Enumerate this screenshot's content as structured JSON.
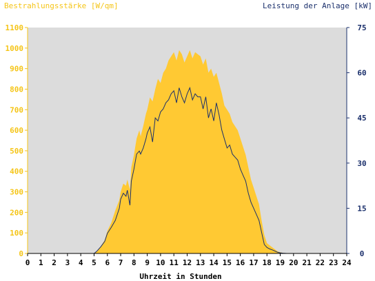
{
  "chart_data": {
    "type": "area",
    "title_left": "Bestrahlungsstärke [W/qm]",
    "title_right": "Leistung der Anlage [kW]",
    "xlabel": "Uhrzeit in Stunden",
    "x_ticks": [
      "0",
      "1",
      "2",
      "3",
      "4",
      "5",
      "6",
      "7",
      "8",
      "9",
      "10",
      "11",
      "12",
      "13",
      "14",
      "15",
      "16",
      "17",
      "18",
      "19",
      "20",
      "21",
      "22",
      "23",
      "24"
    ],
    "y_left_ticks": [
      "0",
      "100",
      "200",
      "300",
      "400",
      "500",
      "600",
      "700",
      "800",
      "900",
      "1000",
      "1100"
    ],
    "y_right_ticks": [
      "0",
      "15",
      "30",
      "45",
      "60",
      "75"
    ],
    "xlim": [
      0,
      24
    ],
    "ylim_left": [
      0,
      1100
    ],
    "ylim_right": [
      0,
      75
    ],
    "colors": {
      "plot_background": "#dcdcdc",
      "irradiance_fill": "#ffc933",
      "power_line": "#1a2f6b",
      "left_axis": "#f5c518",
      "right_axis": "#1a2f6b"
    },
    "series": [
      {
        "name": "Bestrahlungsstärke [W/qm]",
        "axis": "left",
        "style": "area",
        "x": [
          0,
          5.0,
          5.2,
          5.5,
          5.8,
          6.0,
          6.3,
          6.6,
          6.9,
          7.0,
          7.2,
          7.4,
          7.5,
          7.7,
          7.8,
          8.0,
          8.2,
          8.4,
          8.5,
          8.7,
          8.9,
          9.0,
          9.2,
          9.4,
          9.6,
          9.8,
          10.0,
          10.2,
          10.4,
          10.6,
          10.8,
          11.0,
          11.2,
          11.4,
          11.6,
          11.8,
          12.0,
          12.2,
          12.4,
          12.6,
          12.8,
          13.0,
          13.2,
          13.4,
          13.6,
          13.8,
          14.0,
          14.2,
          14.4,
          14.6,
          14.8,
          15.0,
          15.2,
          15.4,
          15.6,
          15.8,
          16.0,
          16.2,
          16.4,
          16.6,
          16.8,
          17.0,
          17.2,
          17.4,
          17.6,
          17.8,
          18.0,
          18.2,
          18.4,
          18.6,
          18.8,
          19.0,
          19.2,
          19.5,
          20.0,
          24
        ],
        "y": [
          0,
          0,
          10,
          35,
          65,
          110,
          150,
          210,
          260,
          300,
          340,
          330,
          360,
          310,
          420,
          480,
          560,
          600,
          570,
          620,
          680,
          700,
          760,
          740,
          800,
          850,
          830,
          880,
          900,
          940,
          960,
          980,
          940,
          990,
          970,
          930,
          960,
          990,
          950,
          980,
          970,
          960,
          920,
          950,
          880,
          900,
          860,
          880,
          830,
          780,
          720,
          700,
          680,
          640,
          620,
          600,
          560,
          520,
          480,
          420,
          360,
          320,
          280,
          240,
          160,
          90,
          50,
          40,
          30,
          20,
          10,
          6,
          3,
          0,
          0,
          0
        ]
      },
      {
        "name": "Leistung der Anlage [kW]",
        "axis": "right",
        "style": "line",
        "x": [
          0,
          5.0,
          5.2,
          5.5,
          5.8,
          6.0,
          6.3,
          6.6,
          6.9,
          7.0,
          7.2,
          7.4,
          7.5,
          7.7,
          7.8,
          8.0,
          8.2,
          8.4,
          8.5,
          8.7,
          8.9,
          9.0,
          9.2,
          9.4,
          9.6,
          9.8,
          10.0,
          10.2,
          10.4,
          10.6,
          10.8,
          11.0,
          11.2,
          11.4,
          11.6,
          11.8,
          12.0,
          12.2,
          12.4,
          12.6,
          12.8,
          13.0,
          13.2,
          13.4,
          13.6,
          13.8,
          14.0,
          14.2,
          14.4,
          14.6,
          14.8,
          15.0,
          15.2,
          15.4,
          15.6,
          15.8,
          16.0,
          16.2,
          16.4,
          16.6,
          16.8,
          17.0,
          17.2,
          17.4,
          17.6,
          17.8,
          18.0,
          18.2,
          18.4,
          18.6,
          18.8,
          19.0,
          19.2,
          19.5,
          20.0,
          24
        ],
        "y": [
          0,
          0,
          0.7,
          2.2,
          4.0,
          6.7,
          8.7,
          11.0,
          15.0,
          18.0,
          20.0,
          19.0,
          21.0,
          16.0,
          24.0,
          28.0,
          33.0,
          34.0,
          33.0,
          35.0,
          38.0,
          40.0,
          42.0,
          37.0,
          45.0,
          44.0,
          47.0,
          48.0,
          50.0,
          51.0,
          53.0,
          54.0,
          50.0,
          55.0,
          52.0,
          50.0,
          53.0,
          55.0,
          51.0,
          53.0,
          52.0,
          52.0,
          48.0,
          52.0,
          45.0,
          48.0,
          44.0,
          50.0,
          46.0,
          41.0,
          38.0,
          35.0,
          36.0,
          33.0,
          32.0,
          31.0,
          28.0,
          26.0,
          24.0,
          20.0,
          17.0,
          15.0,
          13.0,
          11.0,
          7.0,
          3.0,
          2.0,
          1.5,
          1.2,
          0.8,
          0.4,
          0.2,
          0.1,
          0,
          0,
          0
        ]
      }
    ]
  }
}
